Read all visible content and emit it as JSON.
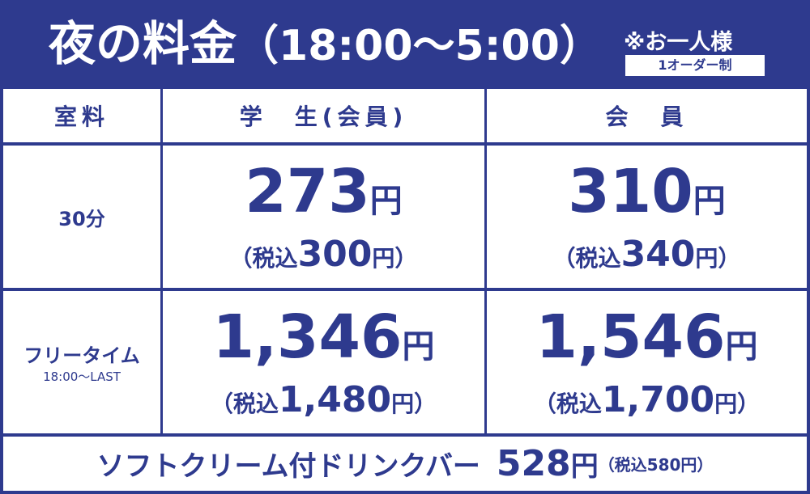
{
  "header": {
    "title": "夜の料金",
    "hours": "（18:00～5:00）",
    "note": "※お一人様",
    "badge": "1オーダー制"
  },
  "table": {
    "columns": [
      "室料",
      "学　生(会員)",
      "会　員"
    ],
    "rows": [
      {
        "label": "30分",
        "sublabel": null,
        "prices": [
          {
            "amount": "273",
            "unit": "円",
            "tax_open": "（税込",
            "tax_amount": "300",
            "tax_close": "円）"
          },
          {
            "amount": "310",
            "unit": "円",
            "tax_open": "（税込",
            "tax_amount": "340",
            "tax_close": "円）"
          }
        ]
      },
      {
        "label": "フリータイム",
        "sublabel": "18:00～LAST",
        "prices": [
          {
            "amount": "1,346",
            "unit": "円",
            "tax_open": "（税込",
            "tax_amount": "1,480",
            "tax_close": "円）"
          },
          {
            "amount": "1,546",
            "unit": "円",
            "tax_open": "（税込",
            "tax_amount": "1,700",
            "tax_close": "円）"
          }
        ]
      }
    ]
  },
  "footer": {
    "label": "ソフトクリーム付ドリンクバー",
    "amount": "528",
    "unit": "円",
    "tax": "（税込580円）"
  }
}
